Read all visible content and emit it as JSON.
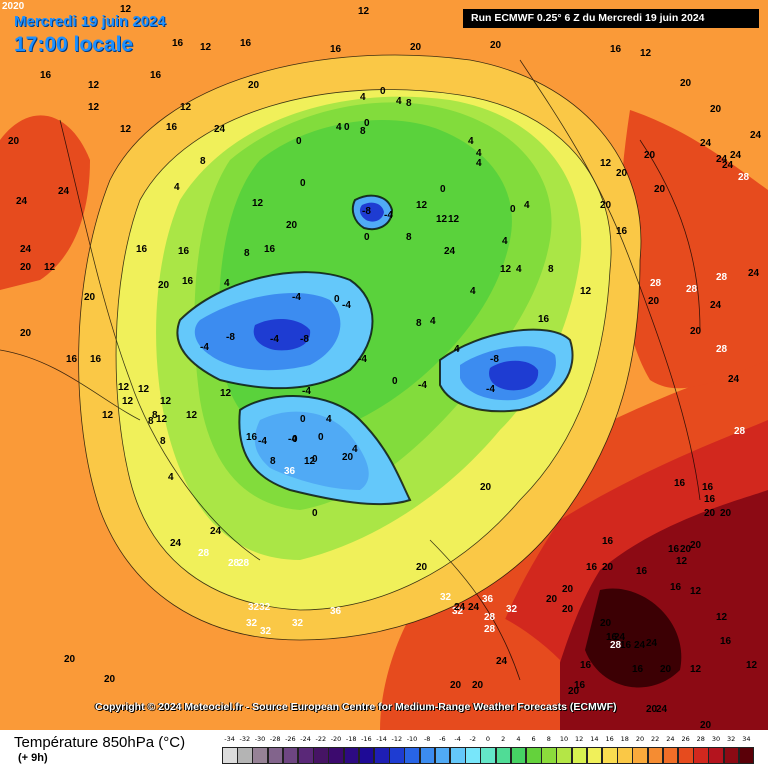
{
  "header": {
    "date_line": "Mercredi 19 juin 2024",
    "time_line": "17:00 locale",
    "run_info": "Run ECMWF 0.25° 6 Z du Mercredi 19 juin 2024"
  },
  "footer": {
    "copyright": "Copyright © 2024 Meteociel.fr - Source European Centre for Medium-Range Weather Forecasts (ECMWF)"
  },
  "legend": {
    "title": "Température 850hPa (°C)",
    "subtitle": "(+ 9h)",
    "ticks": [
      "-34",
      "-32",
      "-30",
      "-28",
      "-26",
      "-24",
      "-22",
      "-20",
      "-18",
      "-16",
      "-14",
      "-12",
      "-10",
      "-8",
      "-6",
      "-4",
      "-2",
      "0",
      "2",
      "4",
      "6",
      "8",
      "10",
      "12",
      "14",
      "16",
      "18",
      "20",
      "22",
      "24",
      "26",
      "28",
      "30",
      "32",
      "34"
    ],
    "colors": [
      "#dcdcdc",
      "#b4b4b4",
      "#8c6e96",
      "#7a4f8a",
      "#5e2a78",
      "#4b1466",
      "#3b0a5e",
      "#2a005a",
      "#1a0070",
      "#2a0096",
      "#1e1eb4",
      "#1e3cd2",
      "#2864e6",
      "#3c8cf0",
      "#50aaf5",
      "#64c8fa",
      "#78dcfa",
      "#64e6c8",
      "#50dc96",
      "#46d264",
      "#5ad23c",
      "#82dc3c",
      "#aae646",
      "#d2f050",
      "#f0f05a",
      "#fadc50",
      "#fac846",
      "#faaa3c",
      "#f58c32",
      "#f06e28",
      "#e64b1e",
      "#d2281e",
      "#b4141e",
      "#8c0a14",
      "#5a0008"
    ],
    "colorbar": [
      {
        "color": "#dcdcdc"
      },
      {
        "color": "#b4b4b4"
      },
      {
        "color": "#968296"
      },
      {
        "color": "#82648c"
      },
      {
        "color": "#6e4682"
      },
      {
        "color": "#5a2878"
      },
      {
        "color": "#461464"
      },
      {
        "color": "#3c0a6e"
      },
      {
        "color": "#2d0a82"
      },
      {
        "color": "#1e0a96"
      },
      {
        "color": "#1e1eb4"
      },
      {
        "color": "#1e3cd2"
      },
      {
        "color": "#2864e6"
      },
      {
        "color": "#3c8cf0"
      },
      {
        "color": "#50aaf5"
      },
      {
        "color": "#64c8fa"
      },
      {
        "color": "#78e6fa"
      },
      {
        "color": "#64e6c8"
      },
      {
        "color": "#50dc96"
      },
      {
        "color": "#46d264"
      },
      {
        "color": "#64d23c"
      },
      {
        "color": "#8cdc3c"
      },
      {
        "color": "#b4e646"
      },
      {
        "color": "#d7f050"
      },
      {
        "color": "#f0f05a"
      },
      {
        "color": "#fadc50"
      },
      {
        "color": "#fac846"
      },
      {
        "color": "#faaa3c"
      },
      {
        "color": "#f58c32"
      },
      {
        "color": "#f06e28"
      },
      {
        "color": "#e64b1e"
      },
      {
        "color": "#d2281e"
      },
      {
        "color": "#b4141e"
      },
      {
        "color": "#8c0a14"
      },
      {
        "color": "#5a0008"
      }
    ]
  },
  "map_labels": [
    "2020",
    "12",
    "16",
    "12",
    "16",
    "12",
    "16",
    "20",
    "20",
    "16",
    "12",
    "16",
    "12",
    "16",
    "12",
    "12",
    "20",
    "24",
    "20",
    "24",
    "24",
    "24",
    "20",
    "12",
    "12",
    "16",
    "8",
    "4",
    "0",
    "4",
    "0",
    "0",
    "0",
    "4",
    "4",
    "4",
    "4",
    "4",
    "0",
    "0",
    "4",
    "8",
    "0",
    "-8",
    "-4",
    "0",
    "8",
    "12",
    "12",
    "4",
    "4",
    "4",
    "4",
    "8",
    "8",
    "12",
    "12",
    "4",
    "8",
    "12",
    "16",
    "12",
    "20",
    "20",
    "20",
    "16",
    "20",
    "20",
    "20",
    "24",
    "24",
    "24",
    "28",
    "24",
    "24",
    "28",
    "28",
    "28",
    "20",
    "24",
    "28",
    "24",
    "24",
    "20",
    "28",
    "-4",
    "-8",
    "-4",
    "-8",
    "-4",
    "0",
    "-4",
    "-4",
    "-4",
    "-8",
    "-4",
    "0",
    "-4",
    "0",
    "-4",
    "-4",
    "0",
    "0",
    "4",
    "0",
    "4",
    "0",
    "8",
    "12",
    "16",
    "16",
    "16",
    "20",
    "16",
    "20",
    "20",
    "16",
    "16",
    "12",
    "12",
    "12",
    "12",
    "12",
    "12",
    "8",
    "4",
    "12",
    "12",
    "8",
    "8",
    "4",
    "8",
    "12",
    "16",
    "20",
    "20",
    "24",
    "20",
    "20",
    "24",
    "24",
    "28",
    "28",
    "28",
    "32",
    "32",
    "32",
    "3232",
    "36",
    "36",
    "36",
    "32",
    "32",
    "32",
    "24",
    "24",
    "28",
    "28",
    "20",
    "24",
    "20",
    "20",
    "20",
    "16",
    "20",
    "16",
    "16",
    "16",
    "20",
    "20",
    "12",
    "16",
    "16",
    "20",
    "20",
    "16",
    "16",
    "16",
    "16",
    "12",
    "12",
    "16",
    "12",
    "12",
    "16",
    "16",
    "20",
    "20",
    "16",
    "24",
    "20",
    "20",
    "20",
    "20",
    "20",
    "24",
    "24",
    "24",
    "28",
    "20",
    "24",
    "28",
    "28",
    "32",
    "32",
    "20",
    "20",
    "24",
    "28",
    "28",
    "20",
    "28",
    "32",
    "32",
    "28",
    "24",
    "24",
    "24",
    "20",
    "20",
    "18"
  ],
  "palette": {
    "hot": "#8c0a14",
    "warm": "#f06e28",
    "mild": "#fac846",
    "cool": "#82dc3c",
    "cold": "#3c8cf0",
    "coldest": "#1e3cd2",
    "text_accent": "#1e90ff"
  }
}
